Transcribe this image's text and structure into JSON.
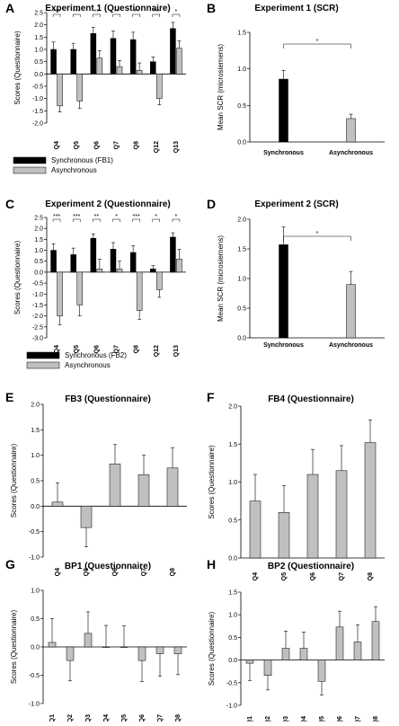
{
  "chart_data": [
    {
      "panel": "A",
      "type": "bar",
      "title": "Experiment 1 (Questionnaire)",
      "ylabel": "Scores (Questionnaire)",
      "xlabel": "",
      "ylim": [
        -2,
        2.5
      ],
      "yticks": [
        -2.0,
        -1.5,
        -1.0,
        -0.5,
        0.0,
        0.5,
        1.0,
        1.5,
        2.0,
        2.5
      ],
      "categories": [
        "Q4",
        "Q5",
        "Q6",
        "Q7",
        "Q8",
        "Q12",
        "Q13"
      ],
      "series": [
        {
          "name": "Synchronous (FB1)",
          "color": "#000000",
          "values": [
            1.0,
            1.0,
            1.65,
            1.45,
            1.4,
            0.5,
            1.85
          ],
          "errors": [
            0.3,
            0.25,
            0.25,
            0.3,
            0.3,
            0.2,
            0.25
          ]
        },
        {
          "name": "Asynchronous",
          "color": "#c0c0c0",
          "values": [
            -1.3,
            -1.1,
            0.65,
            0.3,
            0.15,
            -1.0,
            1.05
          ],
          "errors": [
            0.25,
            0.3,
            0.3,
            0.25,
            0.3,
            0.25,
            0.3
          ]
        }
      ],
      "significance": [
        "***",
        "***",
        "**",
        "**",
        "**",
        "***",
        "*"
      ],
      "legend_placement": "bottom"
    },
    {
      "panel": "B",
      "type": "bar",
      "title": "Experiment 1 (SCR)",
      "ylabel": "Mean SCR (microsiemens)",
      "xlabel": "",
      "ylim": [
        0,
        1.5
      ],
      "yticks": [
        0.0,
        0.5,
        1.0,
        1.5
      ],
      "categories": [
        "Synchronous",
        "Asynchronous"
      ],
      "series": [
        {
          "name": "",
          "values": [
            0.86,
            0.32
          ],
          "errors": [
            0.12,
            0.06
          ]
        }
      ],
      "colors": [
        "#000000",
        "#c0c0c0"
      ],
      "significance": "*"
    },
    {
      "panel": "C",
      "type": "bar",
      "title": "Experiment 2 (Questionnaire)",
      "ylabel": "Scores (Questionnaire)",
      "xlabel": "",
      "ylim": [
        -3,
        2.5
      ],
      "yticks": [
        -3.0,
        -2.5,
        -2.0,
        -1.5,
        -1.0,
        -0.5,
        0.0,
        0.5,
        1.0,
        1.5,
        2.0,
        2.5
      ],
      "categories": [
        "Q4",
        "Q5",
        "Q6",
        "Q7",
        "Q8",
        "Q12",
        "Q13"
      ],
      "series": [
        {
          "name": "Synchronous (FB2)",
          "color": "#000000",
          "values": [
            1.0,
            0.8,
            1.55,
            1.05,
            0.9,
            0.15,
            1.6
          ],
          "errors": [
            0.3,
            0.3,
            0.2,
            0.3,
            0.3,
            0.15,
            0.2
          ]
        },
        {
          "name": "Asynchronous",
          "color": "#c0c0c0",
          "values": [
            -2.0,
            -1.5,
            0.15,
            0.15,
            -1.75,
            -0.8,
            0.6
          ],
          "errors": [
            0.4,
            0.5,
            0.45,
            0.35,
            0.4,
            0.35,
            0.45
          ]
        }
      ],
      "significance": [
        "***",
        "***",
        "**",
        "*",
        "***",
        "*",
        "*"
      ],
      "legend_placement": "bottom"
    },
    {
      "panel": "D",
      "type": "bar",
      "title": "Experiment 2 (SCR)",
      "ylabel": "Mean SCR (microsiemens)",
      "xlabel": "",
      "ylim": [
        0,
        2.0
      ],
      "yticks": [
        0.0,
        0.5,
        1.0,
        1.5,
        2.0
      ],
      "categories": [
        "Synchronous",
        "Asynchronous"
      ],
      "series": [
        {
          "name": "",
          "values": [
            1.57,
            0.9
          ],
          "errors": [
            0.3,
            0.22
          ]
        }
      ],
      "colors": [
        "#000000",
        "#c0c0c0"
      ],
      "significance": "*"
    },
    {
      "panel": "E",
      "type": "bar",
      "title": "FB3 (Questionnaire)",
      "ylabel": "Scores (Questionnaire)",
      "xlabel": "",
      "ylim": [
        -1.0,
        2.0
      ],
      "yticks": [
        -1.0,
        -0.5,
        0.0,
        0.5,
        1.0,
        1.5,
        2.0
      ],
      "categories": [
        "Q4",
        "Q5",
        "Q6",
        "Q7",
        "Q8"
      ],
      "series": [
        {
          "name": "",
          "values": [
            0.08,
            -0.42,
            0.83,
            0.62,
            0.75
          ],
          "errors": [
            0.38,
            0.38,
            0.38,
            0.38,
            0.4
          ]
        }
      ],
      "colors": [
        "#c0c0c0"
      ]
    },
    {
      "panel": "F",
      "type": "bar",
      "title": "FB4 (Questionnaire)",
      "ylabel": "Scores (Questionnaire)",
      "xlabel": "",
      "ylim": [
        0.0,
        2.0
      ],
      "yticks": [
        0.0,
        0.5,
        1.0,
        1.5,
        2.0
      ],
      "categories": [
        "Q4",
        "Q5",
        "Q6",
        "Q7",
        "Q8"
      ],
      "series": [
        {
          "name": "",
          "values": [
            0.75,
            0.6,
            1.1,
            1.15,
            1.52
          ],
          "errors": [
            0.35,
            0.35,
            0.33,
            0.33,
            0.3
          ]
        }
      ],
      "colors": [
        "#c0c0c0"
      ]
    },
    {
      "panel": "G",
      "type": "bar",
      "title": "BP1 (Questionnaire)",
      "ylabel": "Scores (Questionnaire)",
      "xlabel": "",
      "ylim": [
        -1.0,
        1.0
      ],
      "yticks": [
        -1.0,
        -0.5,
        0.0,
        0.5,
        1.0
      ],
      "categories": [
        "Q1",
        "Q2",
        "Q3",
        "Q4",
        "Q5",
        "Q6",
        "Q7",
        "Q8"
      ],
      "series": [
        {
          "name": "",
          "values": [
            0.08,
            -0.24,
            0.24,
            0.0,
            0.0,
            -0.24,
            -0.12,
            -0.12
          ],
          "errors": [
            0.42,
            0.36,
            0.38,
            0.38,
            0.37,
            0.37,
            0.4,
            0.37
          ]
        }
      ],
      "colors": [
        "#c0c0c0"
      ]
    },
    {
      "panel": "H",
      "type": "bar",
      "title": "BP2 (Questionnaire)",
      "ylabel": "Scores (Questionnaire)",
      "xlabel": "",
      "ylim": [
        -1.0,
        1.5
      ],
      "yticks": [
        -1.0,
        -0.5,
        0.0,
        0.5,
        1.0,
        1.5
      ],
      "categories": [
        "Q1",
        "Q2",
        "Q3",
        "Q4",
        "Q5",
        "Q6",
        "Q7",
        "Q8"
      ],
      "series": [
        {
          "name": "",
          "values": [
            -0.07,
            -0.34,
            0.26,
            0.26,
            -0.47,
            0.73,
            0.4,
            0.85
          ],
          "errors": [
            0.38,
            0.32,
            0.38,
            0.36,
            0.3,
            0.35,
            0.38,
            0.33
          ]
        }
      ],
      "colors": [
        "#c0c0c0"
      ]
    }
  ]
}
